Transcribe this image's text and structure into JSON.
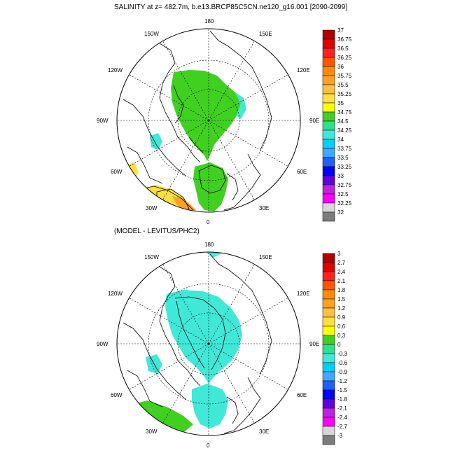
{
  "title_top": "SALINITY at z= 482.7m, b.e13.BRCP85C5CN.ne120_g16.001 [2090-2099]",
  "title_bottom": "(MODEL - LEVITUS/PHC2)",
  "lon_labels": [
    "180",
    "150E",
    "120E",
    "90E",
    "60E",
    "30E",
    "0",
    "30W",
    "60W",
    "90W",
    "120W",
    "150W"
  ],
  "colorbar_top": {
    "labels": [
      "37",
      "36.75",
      "36.5",
      "36.25",
      "36",
      "35.75",
      "35.5",
      "35.25",
      "35",
      "34.75",
      "34.5",
      "34.25",
      "34",
      "33.75",
      "33.5",
      "33.25",
      "33",
      "32.75",
      "32.5",
      "32.25",
      "32"
    ],
    "colors": [
      "#b00000",
      "#e00000",
      "#ff2020",
      "#ff5500",
      "#ff8c00",
      "#ffa020",
      "#ffc040",
      "#ffe040",
      "#ffff00",
      "#40d020",
      "#30e090",
      "#40e8d8",
      "#00d0ff",
      "#40a8ff",
      "#2060ff",
      "#0000ff",
      "#6000e0",
      "#c020e0",
      "#ff00ff",
      "#d8d8d8",
      "#7c7c7c"
    ]
  },
  "colorbar_bottom": {
    "labels": [
      "3",
      "2.7",
      "2.4",
      "2.1",
      "1.8",
      "1.5",
      "1.2",
      "0.9",
      "0.6",
      "0.3",
      "0",
      "-0.3",
      "-0.6",
      "-0.9",
      "-1.2",
      "-1.5",
      "-1.8",
      "-2.1",
      "-2.4",
      "-2.7",
      "-3"
    ],
    "colors": [
      "#b00000",
      "#e00000",
      "#ff2020",
      "#ff5500",
      "#ff8c00",
      "#ffa020",
      "#ffc040",
      "#ffe040",
      "#ffff00",
      "#40d020",
      "#30e090",
      "#40e8d8",
      "#00d0ff",
      "#40a8ff",
      "#2060ff",
      "#0000ff",
      "#6000e0",
      "#c020e0",
      "#ff00ff",
      "#d8d8d8",
      "#7c7c7c"
    ]
  },
  "colors": {
    "green": "#40d020",
    "yellow": "#ffe040",
    "orange": "#ffa020",
    "cyan": "#30e0d0",
    "lightcyan": "#40e8e8"
  }
}
